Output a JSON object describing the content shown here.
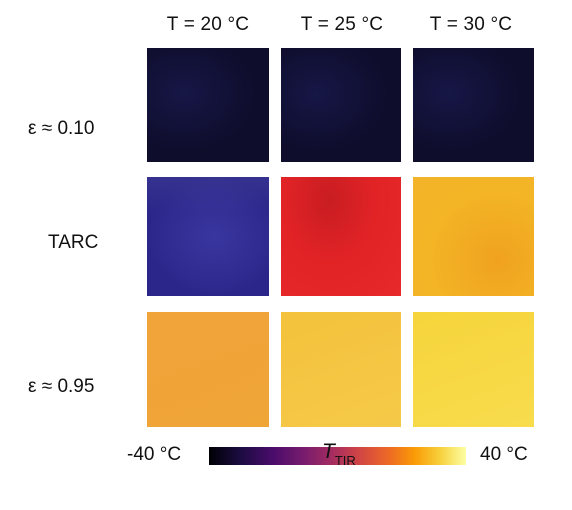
{
  "columns": [
    "T = 20 °C",
    "T = 25 °C",
    "T = 30 °C"
  ],
  "rows": [
    "ε ≈ 0.10",
    "TARC",
    "ε ≈ 0.95"
  ],
  "colorbar": {
    "min_label": "-40 °C",
    "max_label": "40 °C",
    "title_main": "T",
    "title_sub": "TIR",
    "colormap": "inferno"
  },
  "colors": {
    "emissivity_0_10": "#0e0d2c",
    "tarc_20": "#2b278a",
    "tarc_25": "#e12326",
    "tarc_30": "#f3b526",
    "emissivity_0_95_20": "#f1a43a",
    "emissivity_0_95_25": "#f4c23c",
    "emissivity_0_95_30": "#f6d43b"
  }
}
